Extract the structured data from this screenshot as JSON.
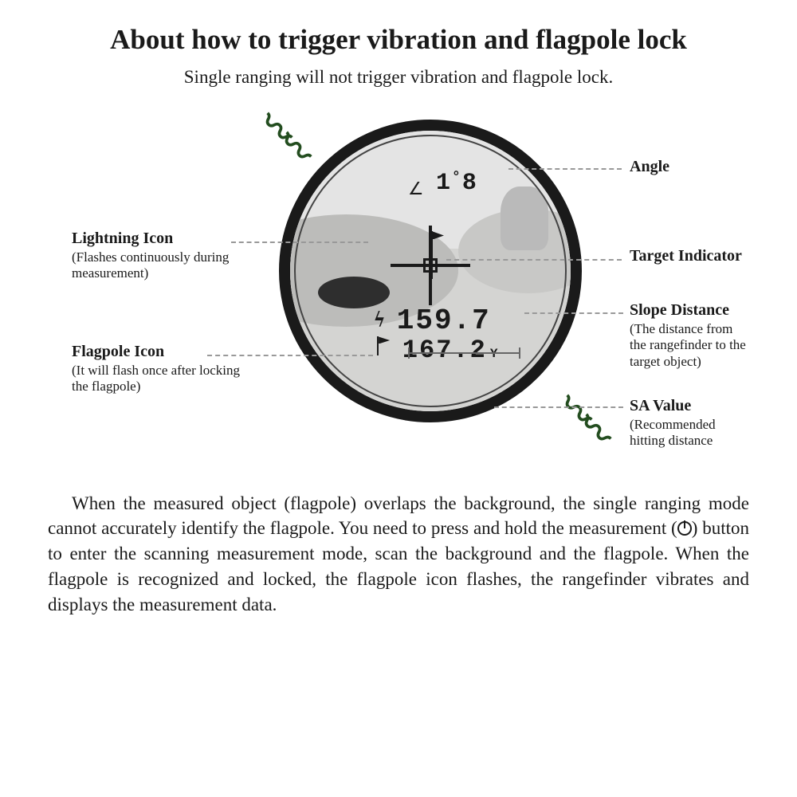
{
  "title": "About how to trigger vibration and flagpole lock",
  "subtitle": "Single ranging will not trigger vibration and flagpole lock.",
  "scope": {
    "angle_value": "1",
    "angle_second": "8",
    "slope_distance": "159.7",
    "sa_value": "167.2",
    "sa_unit": "Y",
    "ring_color": "#1a1a1a",
    "vibe_color": "#234d1f"
  },
  "labels": {
    "angle": {
      "title": "Angle"
    },
    "target": {
      "title": "Target Indicator"
    },
    "slope": {
      "title": "Slope Distance",
      "desc": "(The distance from the rangefinder to the target object)"
    },
    "sa": {
      "title": "SA Value",
      "desc": "(Recommended hitting distance"
    },
    "lightning": {
      "title": "Lightning Icon",
      "desc": "(Flashes continuously during measurement)"
    },
    "flagpole": {
      "title": "Flagpole Icon",
      "desc": "(It will flash once after locking the flagpole)"
    }
  },
  "body_before": "When the measured object (flagpole) overlaps the background, the single ranging mode cannot accurately identify the flagpole. You need to press and hold the measurement (",
  "body_after": ") button to enter the scanning measurement mode, scan the background and the flagpole. When the flagpole is recognized and locked, the flagpole icon flashes,  the rangefinder vibrates and displays the measurement data."
}
